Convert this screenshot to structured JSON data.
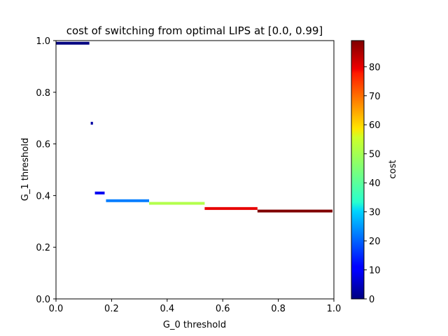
{
  "chart_data": {
    "type": "scatter",
    "title": "cost of switching from optimal LIPS at [0.0, 0.99]",
    "xlabel": "G_0 threshold",
    "ylabel": "G_1 threshold",
    "xlim": [
      0.0,
      1.0
    ],
    "ylim": [
      0.0,
      1.0
    ],
    "xticks": [
      "0.0",
      "0.2",
      "0.4",
      "0.6",
      "0.8",
      "1.0"
    ],
    "yticks": [
      "0.0",
      "0.2",
      "0.4",
      "0.6",
      "0.8",
      "1.0"
    ],
    "grid": false,
    "colormap": "jet",
    "colorbar": {
      "label": "cost",
      "range": [
        0,
        89
      ],
      "ticks": [
        "0",
        "10",
        "20",
        "30",
        "40",
        "50",
        "60",
        "70",
        "80"
      ]
    },
    "segments": [
      {
        "x_start": 0.0,
        "x_end": 0.12,
        "y": 0.99,
        "cost": 0
      },
      {
        "x_start": 0.125,
        "x_end": 0.133,
        "y": 0.68,
        "cost": 3
      },
      {
        "x_start": 0.14,
        "x_end": 0.175,
        "y": 0.41,
        "cost": 10
      },
      {
        "x_start": 0.18,
        "x_end": 0.335,
        "y": 0.38,
        "cost": 22
      },
      {
        "x_start": 0.335,
        "x_end": 0.535,
        "y": 0.37,
        "cost": 49
      },
      {
        "x_start": 0.535,
        "x_end": 0.725,
        "y": 0.35,
        "cost": 80
      },
      {
        "x_start": 0.725,
        "x_end": 0.995,
        "y": 0.34,
        "cost": 89
      }
    ]
  }
}
